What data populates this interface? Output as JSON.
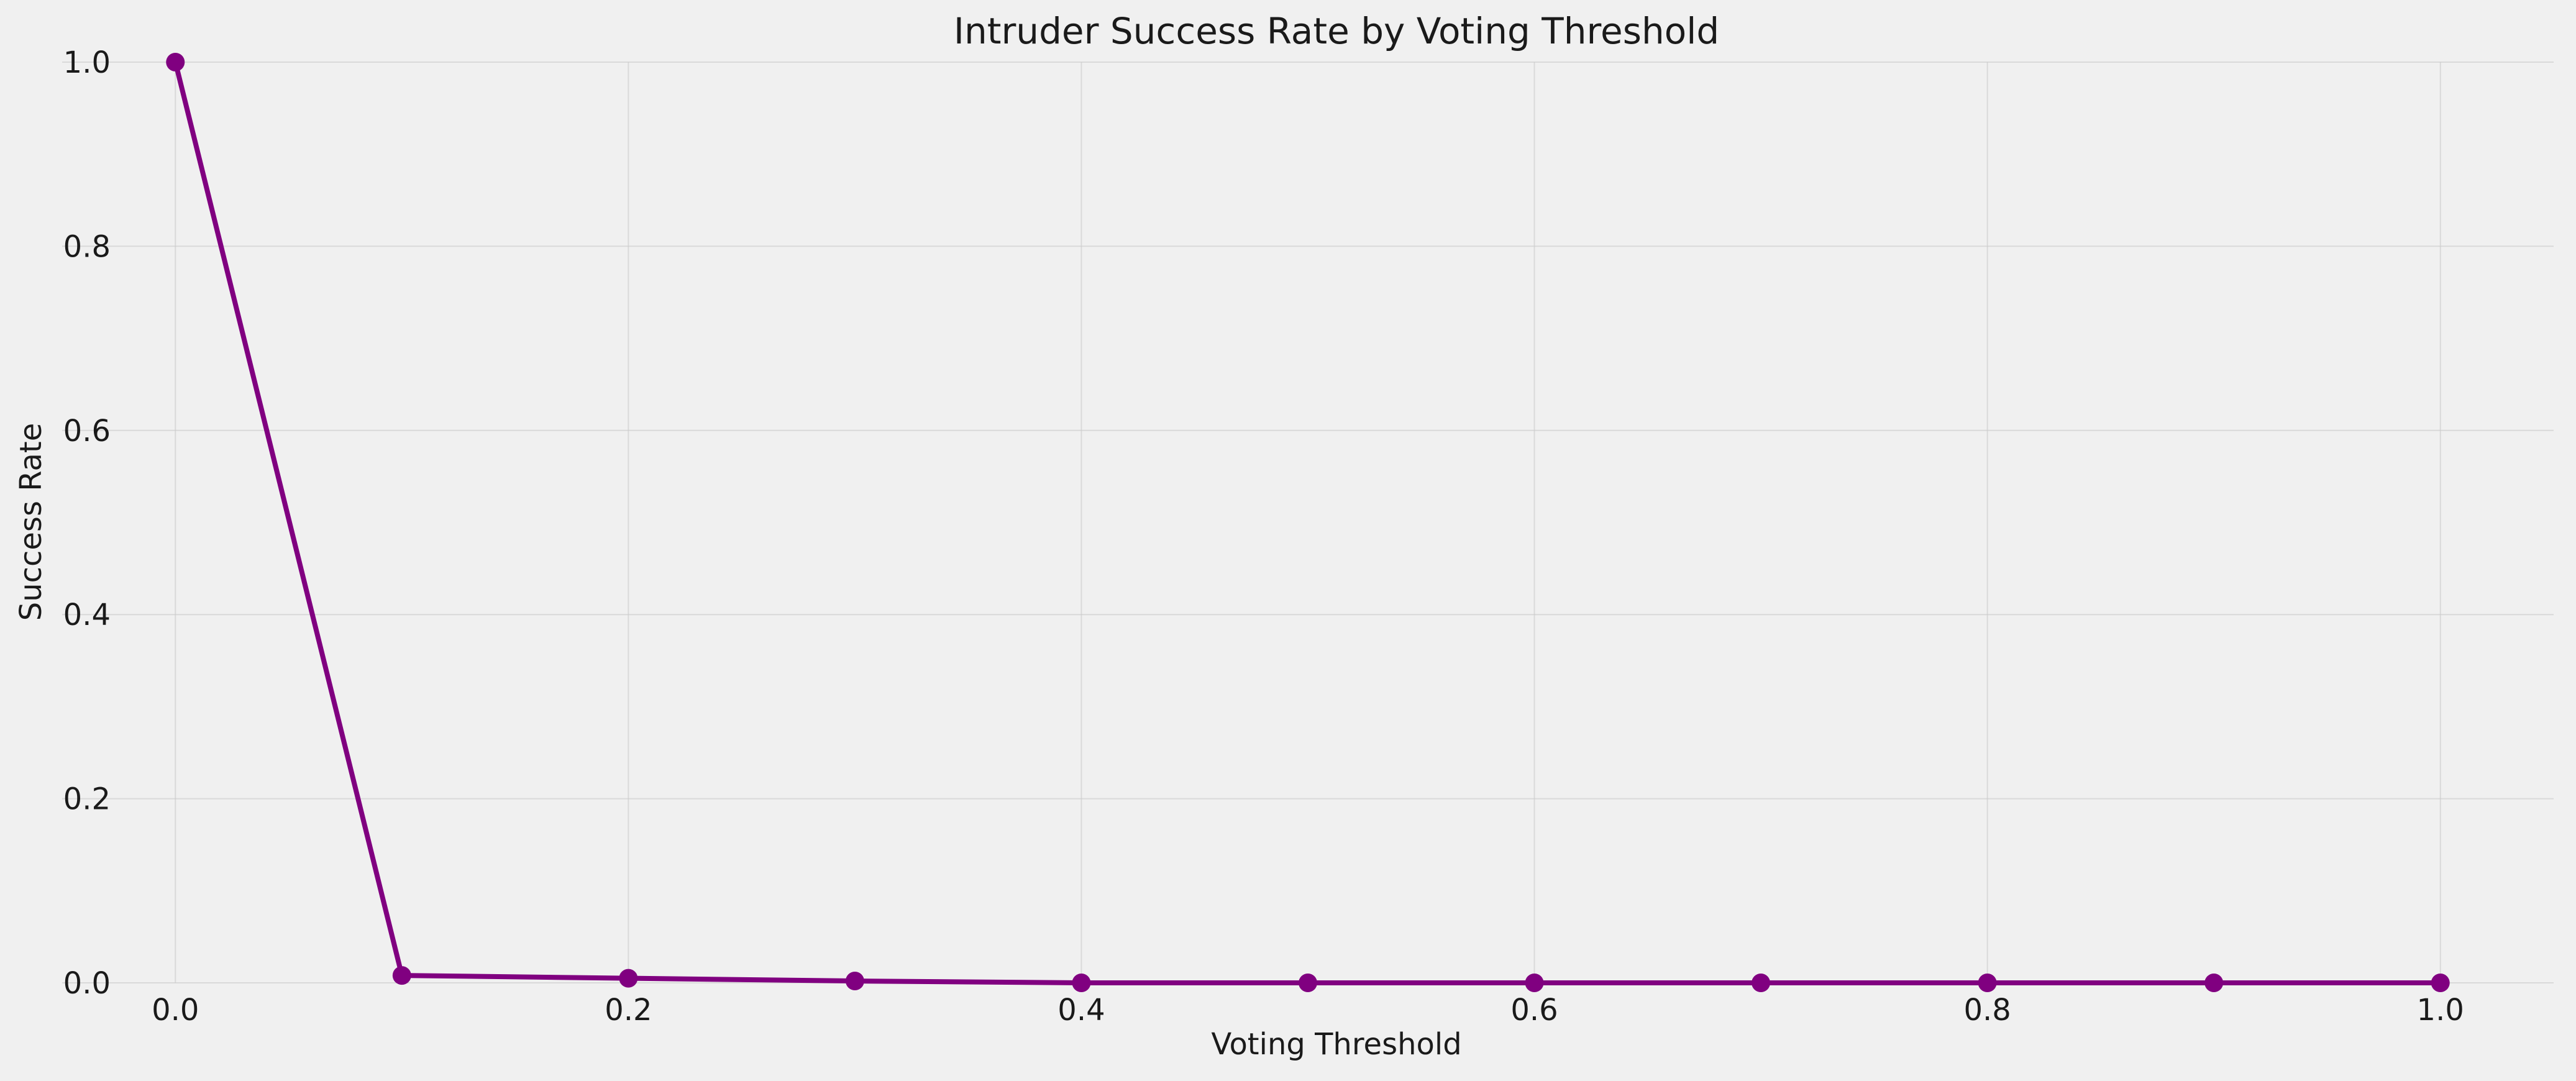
{
  "chart_data": {
    "type": "line",
    "title": "Intruder Success Rate by Voting Threshold",
    "xlabel": "Voting Threshold",
    "ylabel": "Success Rate",
    "xlim": [
      -0.05,
      1.05
    ],
    "ylim": [
      0,
      1
    ],
    "xticks": [
      "0.0",
      "0.2",
      "0.4",
      "0.6",
      "0.8",
      "1.0"
    ],
    "yticks": [
      "0.0",
      "0.2",
      "0.4",
      "0.6",
      "0.8",
      "1.0"
    ],
    "grid": true,
    "series": [
      {
        "x": [
          0.0,
          0.1,
          0.2,
          0.3,
          0.4,
          0.5,
          0.6,
          0.7,
          0.8,
          0.9,
          1.0
        ],
        "y": [
          1.0,
          0.008,
          0.005,
          0.002,
          0.0,
          0.0,
          0.0,
          0.0,
          0.0,
          0.0,
          0.0
        ],
        "color": "#800080",
        "marker": "circle"
      }
    ],
    "background_color": "#f0f0f0"
  }
}
